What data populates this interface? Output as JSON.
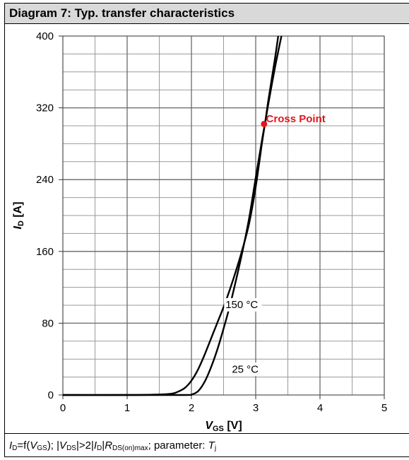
{
  "title": "Diagram 7: Typ. transfer characteristics",
  "footer": {
    "id_sym": "I",
    "id_sub": "D",
    "eq1": "=f(",
    "vgs_sym": "V",
    "vgs_sub": "GS",
    "mid1": "); |",
    "vds_sym": "V",
    "vds_sub": "DS",
    "mid2": "|>2|",
    "id2_sym": "I",
    "id2_sub": "D",
    "mid3": "|",
    "r_sym": "R",
    "r_sub": "DS(on)max",
    "mid4": "; parameter: ",
    "t_sym": "T",
    "t_sub": "j"
  },
  "chart_data": {
    "type": "line",
    "title": "Typ. transfer characteristics",
    "xlabel": {
      "sym": "V",
      "sub": "GS",
      "unit": " [V]"
    },
    "ylabel": {
      "sym": "I",
      "sub": "D",
      "unit": " [A]"
    },
    "xlim": [
      0,
      5
    ],
    "ylim": [
      0,
      400
    ],
    "x_ticks": [
      0,
      1,
      2,
      3,
      4,
      5
    ],
    "y_ticks": [
      0,
      80,
      160,
      240,
      320,
      400
    ],
    "x_minor_step": 0.5,
    "y_minor_step": 20,
    "grid": true,
    "series": [
      {
        "name": "150 °C",
        "color": "#000000",
        "x": [
          0,
          1.0,
          1.5,
          1.7,
          1.8,
          1.9,
          2.0,
          2.1,
          2.2,
          2.3,
          2.4,
          2.5,
          2.6,
          2.7,
          2.8,
          2.9,
          3.0,
          3.1,
          3.15,
          3.2,
          3.3,
          3.35
        ],
        "y": [
          0,
          0,
          0.5,
          1.5,
          4,
          8,
          16,
          28,
          44,
          62,
          80,
          98,
          118,
          140,
          164,
          192,
          232,
          282,
          305,
          330,
          375,
          400
        ]
      },
      {
        "name": "25 °C",
        "color": "#000000",
        "x": [
          0,
          1.0,
          1.9,
          2.0,
          2.1,
          2.2,
          2.3,
          2.4,
          2.5,
          2.6,
          2.7,
          2.8,
          2.9,
          3.0,
          3.1,
          3.15,
          3.2,
          3.3,
          3.4
        ],
        "y": [
          0,
          0,
          0,
          0.5,
          4,
          14,
          30,
          50,
          74,
          100,
          130,
          162,
          198,
          242,
          285,
          305,
          326,
          365,
          400
        ]
      }
    ],
    "annotations": [
      {
        "text": "150 °C",
        "x": 2.53,
        "y": 97
      },
      {
        "text": "25 °C",
        "x": 2.63,
        "y": 25
      },
      {
        "text": "Cross Point",
        "x": 3.16,
        "y": 304,
        "color": "#e3141b"
      }
    ],
    "marker": {
      "x": 3.13,
      "y": 302,
      "color": "#e3141b"
    }
  }
}
